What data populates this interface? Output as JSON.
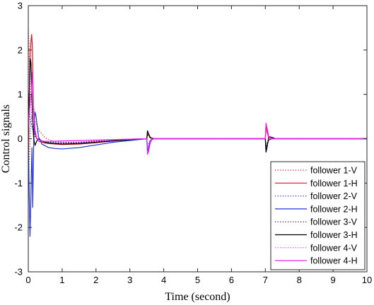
{
  "chart_data": {
    "type": "line",
    "title": "",
    "xlabel": "Time (second)",
    "ylabel": "Control signals",
    "xlim": [
      0,
      10
    ],
    "ylim": [
      -3,
      3
    ],
    "xticks": [
      0,
      1,
      2,
      3,
      4,
      5,
      6,
      7,
      8,
      9,
      10
    ],
    "yticks": [
      -3,
      -2,
      -1,
      0,
      1,
      2,
      3
    ],
    "grid": false,
    "legend_position": "bottom-right",
    "series": [
      {
        "name": "follower 1-V",
        "color": "#e8101c",
        "dash": "dotted",
        "points": [
          [
            0,
            2.5
          ],
          [
            0.03,
            1.8
          ],
          [
            0.06,
            1.2
          ],
          [
            0.1,
            0.8
          ],
          [
            0.15,
            0.6
          ],
          [
            0.2,
            0.4
          ],
          [
            0.3,
            0.2
          ],
          [
            0.5,
            0.02
          ],
          [
            0.7,
            -0.05
          ],
          [
            1,
            -0.08
          ],
          [
            1.5,
            -0.08
          ],
          [
            2,
            -0.05
          ],
          [
            2.5,
            -0.03
          ],
          [
            3,
            -0.01
          ],
          [
            3.5,
            0
          ],
          [
            3.52,
            0.12
          ],
          [
            3.55,
            0.08
          ],
          [
            3.6,
            0.02
          ],
          [
            3.7,
            0
          ],
          [
            5,
            0
          ],
          [
            7,
            0
          ],
          [
            7.02,
            0.3
          ],
          [
            7.05,
            0.15
          ],
          [
            7.1,
            0.03
          ],
          [
            7.2,
            0
          ],
          [
            10,
            0
          ]
        ]
      },
      {
        "name": "follower 1-H",
        "color": "#e8101c",
        "dash": "solid",
        "points": [
          [
            0,
            -0.9
          ],
          [
            0.02,
            0.5
          ],
          [
            0.05,
            1.8
          ],
          [
            0.08,
            2.2
          ],
          [
            0.1,
            2.35
          ],
          [
            0.12,
            2.1
          ],
          [
            0.14,
            1.2
          ],
          [
            0.16,
            0.6
          ],
          [
            0.18,
            0.25
          ],
          [
            0.2,
            0.1
          ],
          [
            0.25,
            0
          ],
          [
            0.3,
            -0.05
          ],
          [
            0.5,
            -0.1
          ],
          [
            0.8,
            -0.12
          ],
          [
            1,
            -0.13
          ],
          [
            1.5,
            -0.12
          ],
          [
            2,
            -0.09
          ],
          [
            2.5,
            -0.05
          ],
          [
            3,
            -0.02
          ],
          [
            3.5,
            0
          ],
          [
            3.52,
            0.15
          ],
          [
            3.55,
            0.1
          ],
          [
            3.6,
            0.02
          ],
          [
            3.7,
            0
          ],
          [
            5,
            0
          ],
          [
            7,
            0
          ],
          [
            7.02,
            0.3
          ],
          [
            7.05,
            0.15
          ],
          [
            7.1,
            0.03
          ],
          [
            7.2,
            0
          ],
          [
            10,
            0
          ]
        ]
      },
      {
        "name": "follower 2-V",
        "color": "#2433d6",
        "dash": "dotted",
        "points": [
          [
            0,
            -1.5
          ],
          [
            0.03,
            -0.5
          ],
          [
            0.06,
            0.2
          ],
          [
            0.1,
            0.5
          ],
          [
            0.15,
            0.35
          ],
          [
            0.2,
            0.1
          ],
          [
            0.3,
            -0.05
          ],
          [
            0.5,
            -0.08
          ],
          [
            1,
            -0.1
          ],
          [
            1.5,
            -0.09
          ],
          [
            2,
            -0.06
          ],
          [
            2.5,
            -0.03
          ],
          [
            3,
            -0.01
          ],
          [
            3.5,
            0
          ],
          [
            3.52,
            -0.15
          ],
          [
            3.55,
            -0.1
          ],
          [
            3.6,
            -0.02
          ],
          [
            3.7,
            0
          ],
          [
            5,
            0
          ],
          [
            7,
            0
          ],
          [
            7.02,
            -0.25
          ],
          [
            7.05,
            -0.12
          ],
          [
            7.1,
            -0.02
          ],
          [
            7.2,
            0
          ],
          [
            10,
            0
          ]
        ]
      },
      {
        "name": "follower 2-H",
        "color": "#2433d6",
        "dash": "solid",
        "points": [
          [
            0,
            -0.3
          ],
          [
            0.02,
            -0.9
          ],
          [
            0.05,
            -2.2
          ],
          [
            0.07,
            -1.6
          ],
          [
            0.09,
            -0.8
          ],
          [
            0.11,
            -0.2
          ],
          [
            0.13,
            -1.55
          ],
          [
            0.15,
            -0.6
          ],
          [
            0.17,
            0.3
          ],
          [
            0.2,
            0.6
          ],
          [
            0.23,
            0.5
          ],
          [
            0.27,
            0.25
          ],
          [
            0.3,
            0.05
          ],
          [
            0.4,
            -0.12
          ],
          [
            0.6,
            -0.2
          ],
          [
            0.8,
            -0.22
          ],
          [
            1,
            -0.23
          ],
          [
            1.5,
            -0.2
          ],
          [
            2,
            -0.14
          ],
          [
            2.5,
            -0.08
          ],
          [
            3,
            -0.04
          ],
          [
            3.5,
            0
          ],
          [
            3.52,
            -0.3
          ],
          [
            3.55,
            -0.2
          ],
          [
            3.6,
            -0.05
          ],
          [
            3.7,
            0
          ],
          [
            5,
            0
          ],
          [
            7,
            0
          ],
          [
            7.02,
            -0.3
          ],
          [
            7.05,
            -0.15
          ],
          [
            7.1,
            -0.03
          ],
          [
            7.2,
            0
          ],
          [
            10,
            0
          ]
        ]
      },
      {
        "name": "follower 3-V",
        "color": "#000000",
        "dash": "dotted",
        "points": [
          [
            0,
            0.9
          ],
          [
            0.03,
            0.7
          ],
          [
            0.06,
            0.4
          ],
          [
            0.1,
            0.3
          ],
          [
            0.15,
            0.15
          ],
          [
            0.2,
            0.05
          ],
          [
            0.3,
            -0.05
          ],
          [
            0.5,
            -0.08
          ],
          [
            1,
            -0.1
          ],
          [
            1.5,
            -0.09
          ],
          [
            2,
            -0.06
          ],
          [
            2.5,
            -0.03
          ],
          [
            3,
            -0.01
          ],
          [
            3.5,
            0
          ],
          [
            3.52,
            0.1
          ],
          [
            3.55,
            0.06
          ],
          [
            3.6,
            0.02
          ],
          [
            3.7,
            0
          ],
          [
            5,
            0
          ],
          [
            7,
            0
          ],
          [
            7.02,
            -0.2
          ],
          [
            7.05,
            -0.1
          ],
          [
            7.1,
            -0.02
          ],
          [
            7.2,
            0
          ],
          [
            10,
            0
          ]
        ]
      },
      {
        "name": "follower 3-H",
        "color": "#000000",
        "dash": "solid",
        "points": [
          [
            0,
            0.1
          ],
          [
            0.03,
            1.1
          ],
          [
            0.06,
            1.8
          ],
          [
            0.08,
            1.7
          ],
          [
            0.1,
            1.1
          ],
          [
            0.13,
            0.4
          ],
          [
            0.16,
            0
          ],
          [
            0.2,
            -0.15
          ],
          [
            0.25,
            -0.05
          ],
          [
            0.3,
            0
          ],
          [
            0.4,
            -0.05
          ],
          [
            0.6,
            -0.1
          ],
          [
            1,
            -0.12
          ],
          [
            1.5,
            -0.11
          ],
          [
            2,
            -0.08
          ],
          [
            2.5,
            -0.05
          ],
          [
            3,
            -0.02
          ],
          [
            3.5,
            0
          ],
          [
            3.52,
            0.18
          ],
          [
            3.55,
            0.12
          ],
          [
            3.6,
            0.03
          ],
          [
            3.7,
            0
          ],
          [
            5,
            0
          ],
          [
            7,
            0
          ],
          [
            7.02,
            -0.3
          ],
          [
            7.05,
            -0.2
          ],
          [
            7.1,
            0.05
          ],
          [
            7.2,
            0.03
          ],
          [
            7.3,
            0
          ],
          [
            10,
            0
          ]
        ]
      },
      {
        "name": "follower 4-V",
        "color": "#ee22ee",
        "dash": "dotted",
        "points": [
          [
            0,
            1.8
          ],
          [
            0.03,
            1.2
          ],
          [
            0.06,
            0.8
          ],
          [
            0.1,
            0.5
          ],
          [
            0.15,
            0.3
          ],
          [
            0.2,
            0.1
          ],
          [
            0.3,
            -0.02
          ],
          [
            0.5,
            -0.06
          ],
          [
            1,
            -0.08
          ],
          [
            1.5,
            -0.07
          ],
          [
            2,
            -0.05
          ],
          [
            2.5,
            -0.03
          ],
          [
            3,
            -0.01
          ],
          [
            3.5,
            0
          ],
          [
            3.52,
            -0.2
          ],
          [
            3.55,
            -0.12
          ],
          [
            3.6,
            -0.03
          ],
          [
            3.7,
            0
          ],
          [
            5,
            0
          ],
          [
            7,
            0
          ],
          [
            7.02,
            0.25
          ],
          [
            7.05,
            0.12
          ],
          [
            7.1,
            0.02
          ],
          [
            7.2,
            0
          ],
          [
            10,
            0
          ]
        ]
      },
      {
        "name": "follower 4-H",
        "color": "#ee22ee",
        "dash": "solid",
        "points": [
          [
            0,
            0.2
          ],
          [
            0.03,
            0.6
          ],
          [
            0.06,
            0.9
          ],
          [
            0.09,
            1.0
          ],
          [
            0.12,
            1.5
          ],
          [
            0.15,
            0.8
          ],
          [
            0.2,
            0.2
          ],
          [
            0.25,
            0
          ],
          [
            0.3,
            -0.05
          ],
          [
            0.5,
            -0.06
          ],
          [
            1,
            -0.05
          ],
          [
            1.5,
            -0.04
          ],
          [
            2,
            -0.03
          ],
          [
            2.5,
            -0.02
          ],
          [
            3,
            -0.01
          ],
          [
            3.5,
            0
          ],
          [
            3.52,
            -0.35
          ],
          [
            3.55,
            -0.3
          ],
          [
            3.6,
            -0.1
          ],
          [
            3.65,
            -0.02
          ],
          [
            3.7,
            0
          ],
          [
            5,
            0
          ],
          [
            7,
            0
          ],
          [
            7.02,
            0.35
          ],
          [
            7.05,
            0.25
          ],
          [
            7.1,
            0.05
          ],
          [
            7.2,
            0
          ],
          [
            10,
            0
          ]
        ]
      }
    ]
  }
}
